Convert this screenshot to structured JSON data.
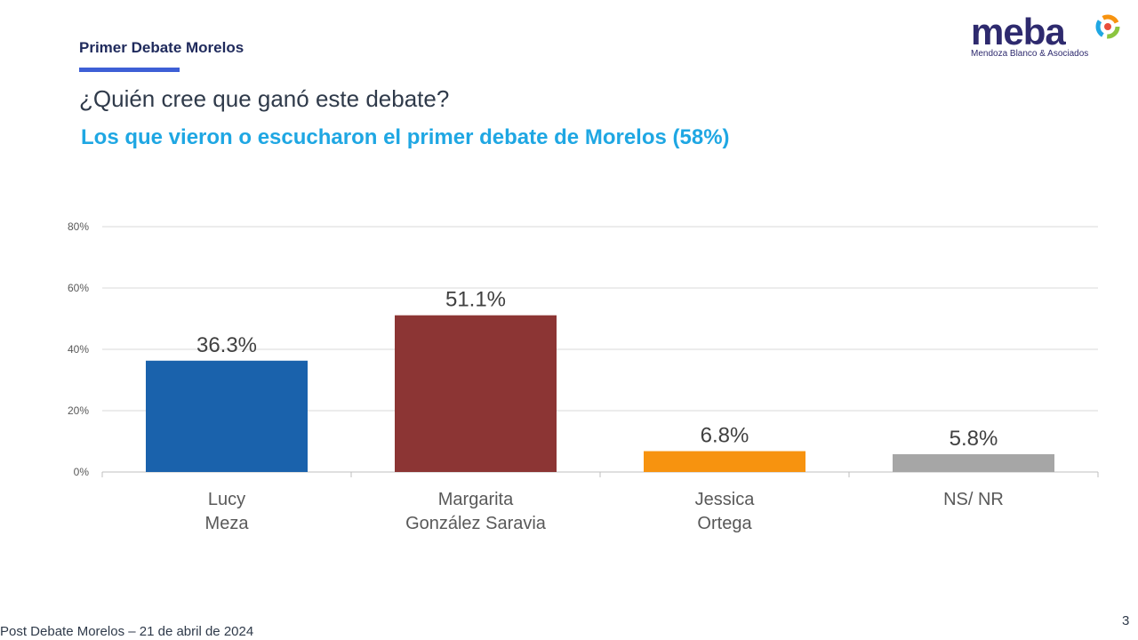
{
  "header": {
    "label": "Primer Debate Morelos",
    "question": "¿Quién cree que ganó este debate?",
    "subtitle": "Los que vieron o escucharon el primer debate de Morelos (58%)"
  },
  "logo": {
    "name": "meba",
    "tagline": "Mendoza Blanco & Asociados"
  },
  "footer": {
    "text": "Post Debate Morelos – 21 de abril de 2024",
    "page_number": "3"
  },
  "chart_data": {
    "type": "bar",
    "title": "¿Quién cree que ganó este debate?",
    "xlabel": "",
    "ylabel": "",
    "ylim": [
      0,
      80
    ],
    "yticks": [
      0,
      20,
      40,
      60,
      80
    ],
    "ytick_labels": [
      "0%",
      "20%",
      "40%",
      "60%",
      "80%"
    ],
    "grid": true,
    "categories": [
      [
        "Lucy",
        "Meza"
      ],
      [
        "Margarita",
        "González Saravia"
      ],
      [
        "Jessica",
        "Ortega"
      ],
      [
        "NS/ NR"
      ]
    ],
    "values": [
      36.3,
      51.1,
      6.8,
      5.8
    ],
    "value_labels": [
      "36.3%",
      "51.1%",
      "6.8%",
      "5.8%"
    ],
    "colors": [
      "#1a62ac",
      "#8c3534",
      "#f7930f",
      "#a6a6a6"
    ]
  }
}
